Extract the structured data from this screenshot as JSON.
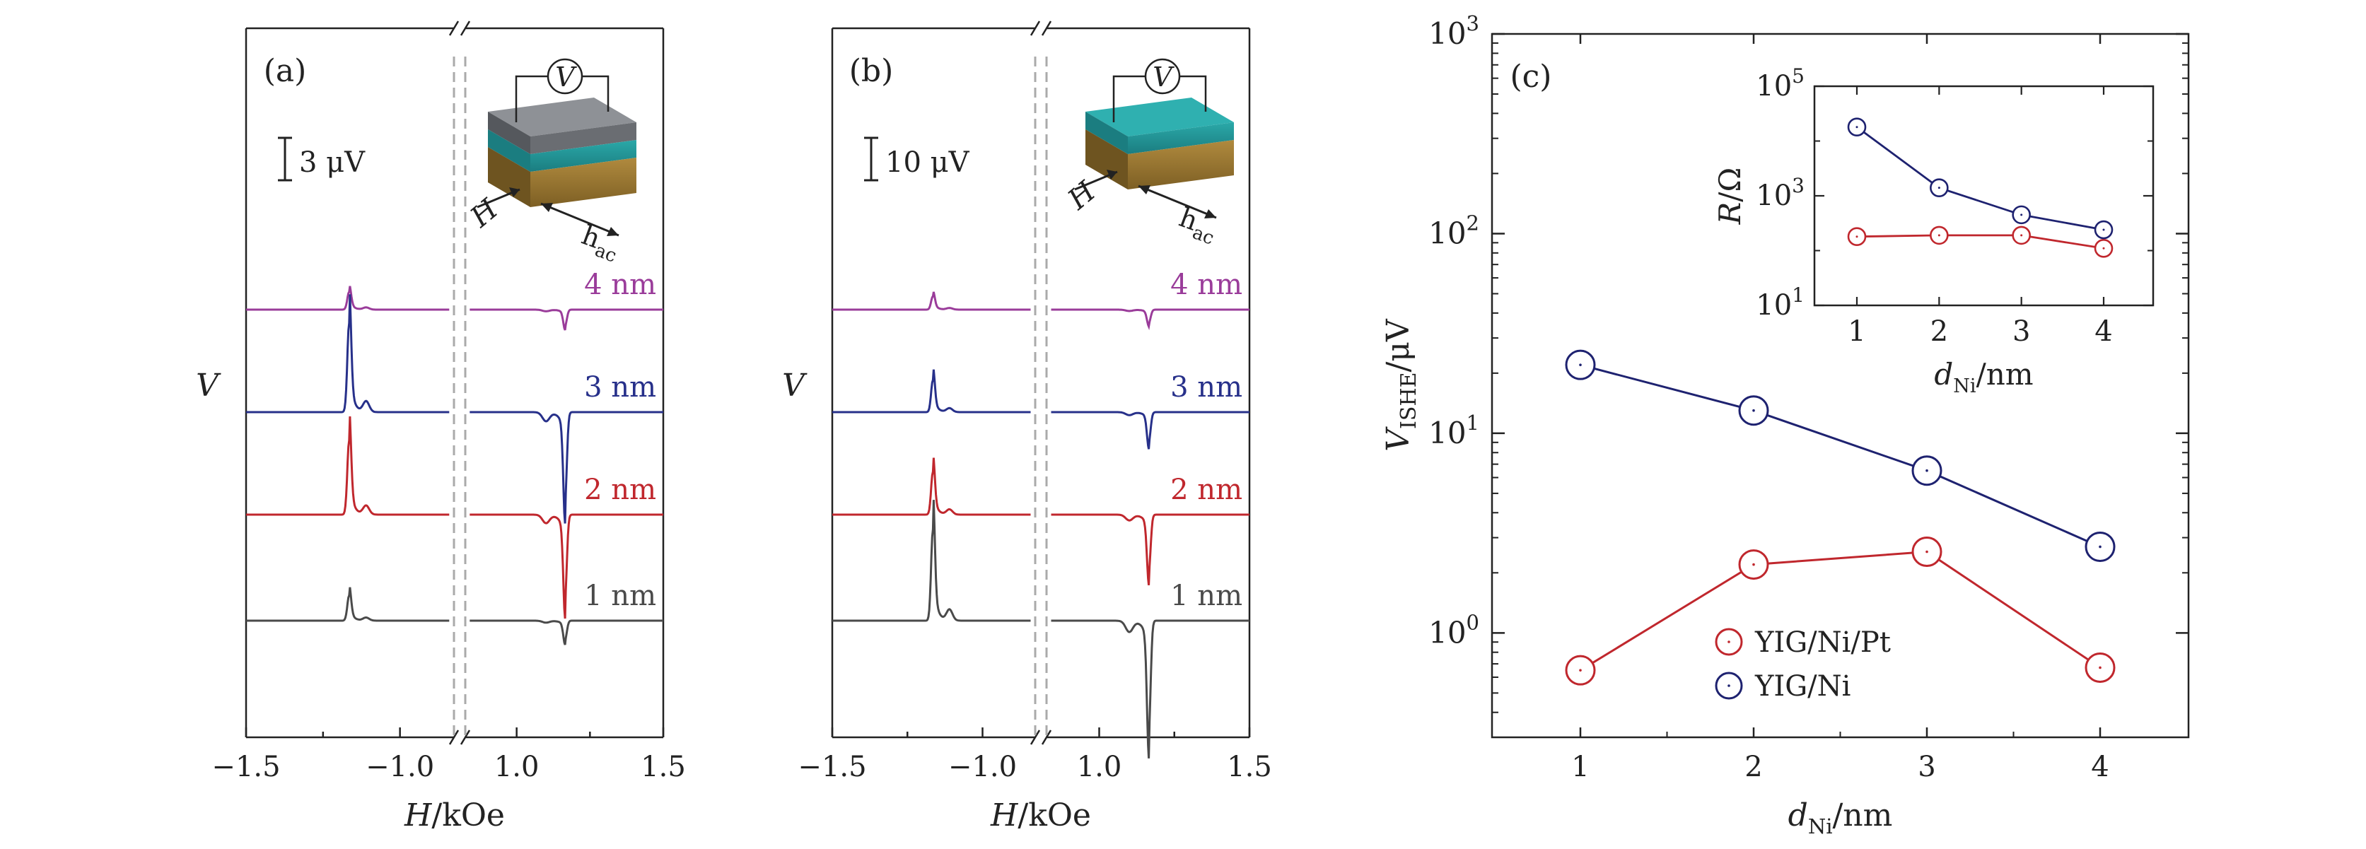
{
  "chart_data": [
    {
      "type": "line",
      "panel_label": "(a)",
      "xlabel": "H/kOe",
      "ylabel": "V",
      "xticks": [
        "−1.5",
        "−1.0",
        "1.0",
        "1.5"
      ],
      "axis_break": true,
      "scale_bar": "3 μV",
      "inset_labels": {
        "voltmeter": "V",
        "field": "H",
        "hac": "hac"
      },
      "series": [
        {
          "name": "4 nm",
          "color": "#9a3c9a",
          "resonance_H_kOe": [
            -1.17,
            1.17
          ],
          "peak": 0.6,
          "dip": -0.55
        },
        {
          "name": "3 nm",
          "color": "#27308a",
          "resonance_H_kOe": [
            -1.17,
            1.17
          ],
          "peak": 3.0,
          "dip": -3.0
        },
        {
          "name": "2 nm",
          "color": "#c0272d",
          "resonance_H_kOe": [
            -1.17,
            1.17
          ],
          "peak": 2.5,
          "dip": -2.8
        },
        {
          "name": "1 nm",
          "color": "#4a4a4a",
          "resonance_H_kOe": [
            -1.17,
            1.17
          ],
          "peak": 0.85,
          "dip": -0.65
        }
      ]
    },
    {
      "type": "line",
      "panel_label": "(b)",
      "xlabel": "H/kOe",
      "ylabel": "V",
      "xticks": [
        "−1.5",
        "−1.0",
        "1.0",
        "1.5"
      ],
      "axis_break": true,
      "scale_bar": "10 μV",
      "inset_labels": {
        "voltmeter": "V",
        "field": "H",
        "hac": "hac"
      },
      "series": [
        {
          "name": "4 nm",
          "color": "#9a3c9a",
          "resonance_H_kOe": [
            -1.17,
            1.17
          ],
          "peak": 0.5,
          "dip": -0.5
        },
        {
          "name": "3 nm",
          "color": "#27308a",
          "resonance_H_kOe": [
            -1.17,
            1.17
          ],
          "peak": 1.2,
          "dip": -1.1
        },
        {
          "name": "2 nm",
          "color": "#c0272d",
          "resonance_H_kOe": [
            -1.17,
            1.17
          ],
          "peak": 1.6,
          "dip": -2.1
        },
        {
          "name": "1 nm",
          "color": "#4a4a4a",
          "resonance_H_kOe": [
            -1.17,
            1.17
          ],
          "peak": 3.4,
          "dip": -4.1
        }
      ]
    },
    {
      "type": "line",
      "panel_label": "(c)",
      "xlabel": "dNi/nm",
      "ylabel": "VISHE/μV",
      "yscale": "log",
      "ylim": [
        0.3,
        1000
      ],
      "yticks": [
        "10^0",
        "10^1",
        "10^2",
        "10^3"
      ],
      "x": [
        1,
        2,
        3,
        4
      ],
      "legend_position": "bottom-center",
      "series": [
        {
          "name": "YIG/Ni/Pt",
          "color": "#c0272d",
          "values": [
            0.65,
            2.2,
            2.55,
            0.67
          ]
        },
        {
          "name": "YIG/Ni",
          "color": "#1e2270",
          "values": [
            22,
            13,
            6.5,
            2.7
          ]
        }
      ]
    },
    {
      "type": "line",
      "panel_label": "",
      "inset_of": "(c)",
      "xlabel": "dNi/nm",
      "ylabel": "R/Ω",
      "yscale": "log",
      "ylim": [
        10,
        100000
      ],
      "yticks": [
        "10^1",
        "10^3",
        "10^5"
      ],
      "x": [
        1,
        2,
        3,
        4
      ],
      "series": [
        {
          "color": "#c0272d",
          "values": [
            180,
            190,
            190,
            110
          ]
        },
        {
          "color": "#1e2270",
          "values": [
            18000,
            1400,
            450,
            240
          ]
        }
      ]
    }
  ]
}
